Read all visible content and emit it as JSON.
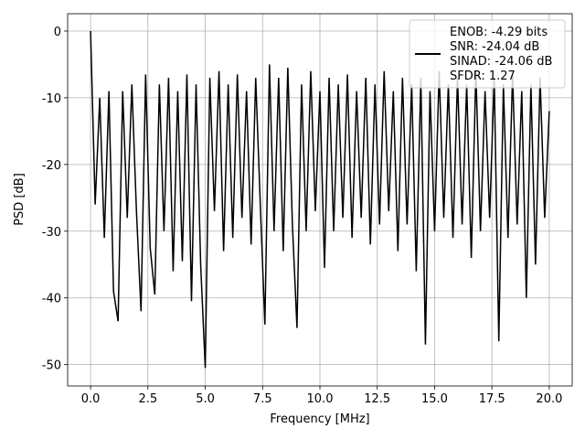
{
  "chart_data": {
    "type": "line",
    "xlabel": "Frequency [MHz]",
    "ylabel": "PSD [dB]",
    "x": [
      0,
      0.2,
      0.4,
      0.6,
      0.8,
      1.0,
      1.2,
      1.4,
      1.6,
      1.8,
      2.0,
      2.2,
      2.4,
      2.6,
      2.8,
      3.0,
      3.2,
      3.4,
      3.6,
      3.8,
      4.0,
      4.2,
      4.4,
      4.6,
      4.8,
      5.0,
      5.2,
      5.4,
      5.6,
      5.8,
      6.0,
      6.2,
      6.4,
      6.6,
      6.8,
      7.0,
      7.2,
      7.4,
      7.6,
      7.8,
      8.0,
      8.2,
      8.4,
      8.6,
      8.8,
      9.0,
      9.2,
      9.4,
      9.6,
      9.8,
      10.0,
      10.2,
      10.4,
      10.6,
      10.8,
      11.0,
      11.2,
      11.4,
      11.6,
      11.8,
      12.0,
      12.2,
      12.4,
      12.6,
      12.8,
      13.0,
      13.2,
      13.4,
      13.6,
      13.8,
      14.0,
      14.2,
      14.4,
      14.6,
      14.8,
      15.0,
      15.2,
      15.4,
      15.6,
      15.8,
      16.0,
      16.2,
      16.4,
      16.6,
      16.8,
      17.0,
      17.2,
      17.4,
      17.6,
      17.8,
      18.0,
      18.2,
      18.4,
      18.6,
      18.8,
      19.0,
      19.2,
      19.4,
      19.6,
      19.8,
      20.0
    ],
    "series": [
      {
        "name": "ENOB: -4.29 bits\nSNR: -24.04 dB\nSINAD: -24.06 dB\nSFDR: 1.27",
        "color": "#000000",
        "values": [
          0,
          -26,
          -10,
          -31,
          -9,
          -39,
          -43.5,
          -9,
          -28,
          -8,
          -27,
          -42,
          -6.5,
          -32.5,
          -39.5,
          -8,
          -30,
          -7,
          -36,
          -9,
          -34.5,
          -6.5,
          -40.5,
          -8,
          -35,
          -50.5,
          -7,
          -27,
          -6,
          -33,
          -8,
          -31,
          -6.5,
          -28,
          -9,
          -32,
          -7,
          -26,
          -44,
          -5,
          -30,
          -7,
          -33,
          -5.5,
          -29,
          -44.5,
          -8,
          -30,
          -6,
          -27,
          -9,
          -35.5,
          -7,
          -30,
          -8,
          -28,
          -6.5,
          -31,
          -9,
          -28,
          -7,
          -32,
          -8,
          -29,
          -6,
          -27,
          -9,
          -33,
          -7,
          -29,
          -8,
          -36,
          -7,
          -47,
          -9,
          -30,
          -6,
          -28,
          -8,
          -31,
          -7,
          -29,
          -8,
          -34,
          -6,
          -30,
          -9,
          -28,
          -7,
          -46.5,
          -8,
          -31,
          -6.5,
          -29,
          -9,
          -40,
          -8,
          -35,
          -7,
          -28,
          -12
        ]
      }
    ],
    "xlim": [
      -1.0,
      21.0
    ],
    "ylim": [
      -53.2,
      2.6
    ],
    "xticks": [
      {
        "value": 0,
        "label": "0.0"
      },
      {
        "value": 2.5,
        "label": "2.5"
      },
      {
        "value": 5,
        "label": "5.0"
      },
      {
        "value": 7.5,
        "label": "7.5"
      },
      {
        "value": 10,
        "label": "10.0"
      },
      {
        "value": 12.5,
        "label": "12.5"
      },
      {
        "value": 15,
        "label": "15.0"
      },
      {
        "value": 17.5,
        "label": "17.5"
      },
      {
        "value": 20,
        "label": "20.0"
      }
    ],
    "yticks": [
      0,
      -10,
      -20,
      -30,
      -40,
      -50
    ],
    "grid": true,
    "legend": "upper-right"
  }
}
